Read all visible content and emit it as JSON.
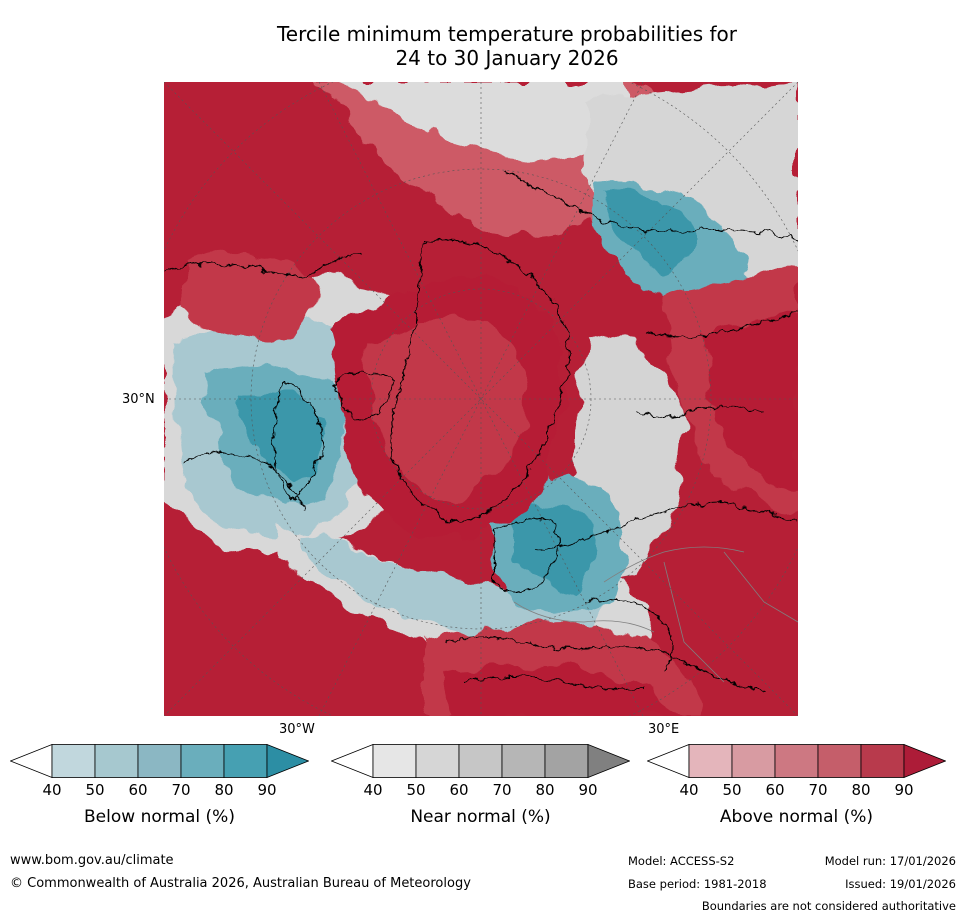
{
  "title": {
    "line1": "Tercile minimum temperature probabilities for",
    "line2": "24 to 30 January 2026"
  },
  "map": {
    "projection": "north-polar-stereographic",
    "lat_labels": [
      "30°N"
    ],
    "lon_labels": [
      "30°W",
      "30°E"
    ],
    "colors": {
      "above_90": "#b61f36",
      "above_80": "#c2394a",
      "above_70": "#cd5a66",
      "above_60": "#d27a83",
      "above_50": "#dca0a7",
      "near": "#d4d4d4",
      "near_light": "#e6e6e6",
      "below_50": "#a8c8d0",
      "below_70": "#6aaebc",
      "below_90": "#3b97aa",
      "land_line": "#000000",
      "border_line": "#808080"
    }
  },
  "colorbars": [
    {
      "label": "Below normal (%)",
      "ticks": [
        "40",
        "50",
        "60",
        "70",
        "80",
        "90"
      ],
      "colors": [
        "#ffffff",
        "#c1d7dd",
        "#a6c8cf",
        "#8bb7c3",
        "#6aaebc",
        "#46a0b2",
        "#2c8ea4"
      ]
    },
    {
      "label": "Near normal (%)",
      "ticks": [
        "40",
        "50",
        "60",
        "70",
        "80",
        "90"
      ],
      "colors": [
        "#ffffff",
        "#e6e6e6",
        "#d6d6d6",
        "#c6c6c6",
        "#b6b6b6",
        "#a3a3a3",
        "#808080"
      ]
    },
    {
      "label": "Above normal (%)",
      "ticks": [
        "40",
        "50",
        "60",
        "70",
        "80",
        "90"
      ],
      "colors": [
        "#ffffff",
        "#e4b5bb",
        "#d89ba2",
        "#cd7882",
        "#c55e6a",
        "#b83a4c",
        "#ad1c38"
      ]
    }
  ],
  "footer": {
    "url": "www.bom.gov.au/climate",
    "copyright": "© Commonwealth of Australia 2026, Australian Bureau of Meteorology",
    "model": "Model: ACCESS-S2",
    "base_period": "Base period: 1981-2018",
    "model_run": "Model run: 17/01/2026",
    "issued": "Issued: 19/01/2026",
    "disclaimer": "Boundaries are not considered authoritative"
  }
}
